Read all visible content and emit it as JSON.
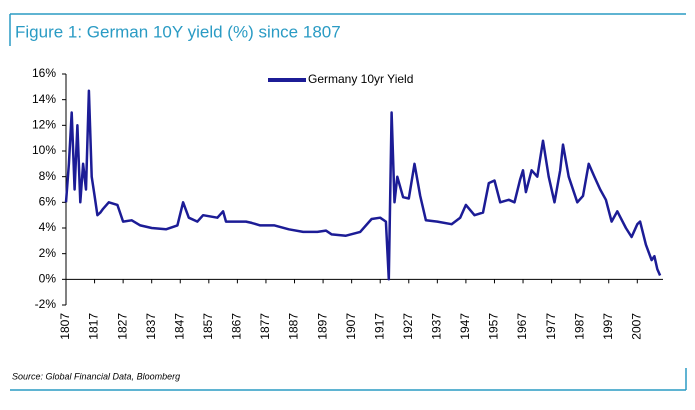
{
  "chart_data": {
    "type": "line",
    "title": "Figure 1: German 10Y yield (%) since 1807",
    "source": "Source: Global Financial Data, Bloomberg",
    "x": [
      1807,
      1808,
      1809,
      1810,
      1811,
      1812,
      1813,
      1814,
      1815,
      1816,
      1817,
      1818,
      1819,
      1820,
      1822,
      1825,
      1827,
      1830,
      1833,
      1837,
      1842,
      1846,
      1848,
      1850,
      1853,
      1855,
      1860,
      1862,
      1863,
      1870,
      1872,
      1875,
      1880,
      1885,
      1890,
      1895,
      1898,
      1900,
      1905,
      1910,
      1914,
      1917,
      1919,
      1920,
      1921,
      1922,
      1923,
      1925,
      1927,
      1929,
      1931,
      1933,
      1937,
      1942,
      1945,
      1947,
      1950,
      1953,
      1955,
      1957,
      1959,
      1962,
      1964,
      1966,
      1967,
      1968,
      1970,
      1972,
      1974,
      1976,
      1978,
      1980,
      1981,
      1983,
      1986,
      1988,
      1990,
      1992,
      1994,
      1996,
      1998,
      2000,
      2003,
      2005,
      2007,
      2008,
      2010,
      2012,
      2013,
      2014,
      2015
    ],
    "series": [
      {
        "name": "Germany 10yr Yield",
        "color": "#1c1c96",
        "values": [
          6,
          9,
          13,
          7,
          12,
          6,
          9,
          7,
          14.7,
          8,
          6.5,
          5,
          5.2,
          5.5,
          6,
          5.8,
          4.5,
          4.6,
          4.2,
          4.0,
          3.9,
          4.2,
          6,
          4.8,
          4.5,
          5,
          4.8,
          5.3,
          4.5,
          4.5,
          4.4,
          4.2,
          4.2,
          3.9,
          3.7,
          3.7,
          3.8,
          3.5,
          3.4,
          3.7,
          4.7,
          4.8,
          4.5,
          0,
          13,
          6,
          8,
          6.4,
          6.3,
          9,
          6.5,
          4.6,
          4.5,
          4.3,
          4.8,
          5.8,
          5,
          5.2,
          7.5,
          7.7,
          6,
          6.2,
          6,
          7.8,
          8.5,
          6.8,
          8.5,
          8,
          10.8,
          8,
          6,
          8.5,
          10.5,
          8,
          6,
          6.5,
          9,
          8,
          7,
          6.2,
          4.5,
          5.3,
          4,
          3.3,
          4.3,
          4.5,
          2.7,
          1.5,
          1.8,
          0.8,
          0.3
        ]
      }
    ],
    "xlim": [
      1807,
      2016
    ],
    "xticks": [
      1807,
      1817,
      1827,
      1837,
      1847,
      1857,
      1867,
      1877,
      1887,
      1897,
      1907,
      1917,
      1927,
      1937,
      1947,
      1957,
      1967,
      1977,
      1987,
      1997,
      2007
    ],
    "ylim": [
      -2,
      16
    ],
    "yticks": [
      {
        "value": -2,
        "label": "-2%"
      },
      {
        "value": 0,
        "label": "0%"
      },
      {
        "value": 2,
        "label": "2%"
      },
      {
        "value": 4,
        "label": "4%"
      },
      {
        "value": 6,
        "label": "6%"
      },
      {
        "value": 8,
        "label": "8%"
      },
      {
        "value": 10,
        "label": "10%"
      },
      {
        "value": 12,
        "label": "12%"
      },
      {
        "value": 14,
        "label": "14%"
      },
      {
        "value": 16,
        "label": "16%"
      }
    ],
    "grid": false,
    "legend": "top"
  }
}
